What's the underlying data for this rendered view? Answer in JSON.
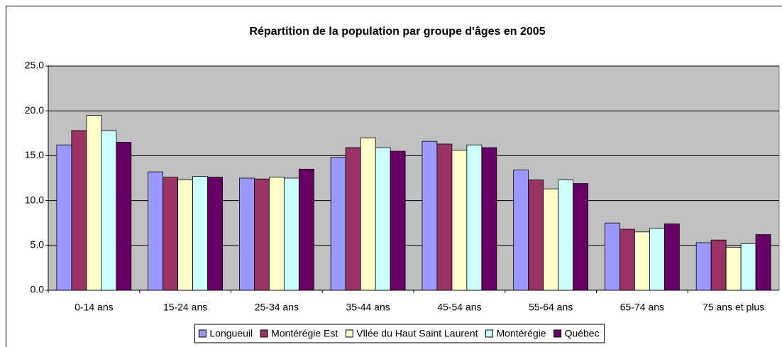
{
  "chart_data": {
    "type": "bar",
    "title": "Répartition de la population par groupe d'âges en 2005",
    "categories": [
      "0-14 ans",
      "15-24 ans",
      "25-34 ans",
      "35-44 ans",
      "45-54 ans",
      "55-64 ans",
      "65-74 ans",
      "75 ans et plus"
    ],
    "series": [
      {
        "name": "Longueuil",
        "color": "#9999ff",
        "values": [
          16.2,
          13.2,
          12.5,
          14.8,
          16.6,
          13.4,
          7.5,
          5.3
        ]
      },
      {
        "name": "Montérégie Est",
        "color": "#993366",
        "values": [
          17.8,
          12.6,
          12.4,
          15.9,
          16.3,
          12.3,
          6.8,
          5.6
        ]
      },
      {
        "name": "Vllée du Haut Saint Laurent",
        "color": "#ffffcc",
        "values": [
          19.5,
          12.3,
          12.6,
          17.0,
          15.6,
          11.3,
          6.5,
          4.8
        ]
      },
      {
        "name": "Montérégie",
        "color": "#ccffff",
        "values": [
          17.8,
          12.7,
          12.5,
          15.9,
          16.2,
          12.3,
          6.9,
          5.2
        ]
      },
      {
        "name": "Québec",
        "color": "#660066",
        "values": [
          16.5,
          12.6,
          13.5,
          15.5,
          15.9,
          11.9,
          7.4,
          6.2
        ]
      }
    ],
    "ylim": [
      0,
      25
    ],
    "yticks": [
      {
        "value": 0,
        "label": "0.0"
      },
      {
        "value": 5,
        "label": "5.0"
      },
      {
        "value": 10,
        "label": "10.0"
      },
      {
        "value": 15,
        "label": "15.0"
      },
      {
        "value": 20,
        "label": "20.0"
      },
      {
        "value": 25,
        "label": "25.0"
      }
    ],
    "grid": true,
    "legend": "bottom"
  }
}
